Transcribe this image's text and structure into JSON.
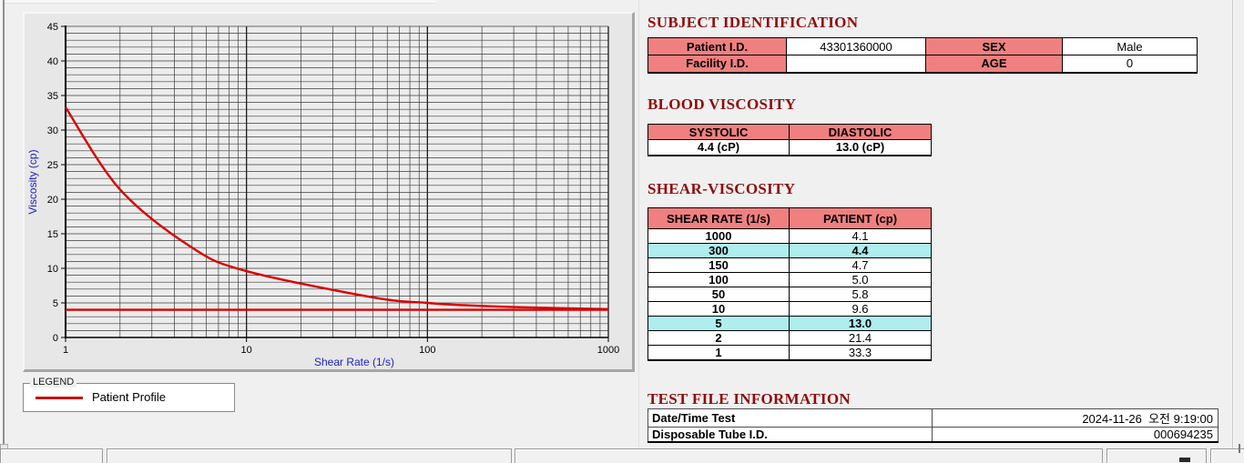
{
  "colors": {
    "header_pink": "#f08080",
    "highlight_cyan": "#afeeee",
    "title_red": "#8e0d0d",
    "axis_label_blue": "#2020c8",
    "series_red": "#d90000"
  },
  "chart_data": {
    "type": "line",
    "xlabel": "Shear Rate (1/s)",
    "ylabel": "Viscosity (cp)",
    "x_scale": "log",
    "xlim": [
      1,
      1000
    ],
    "ylim": [
      0,
      45
    ],
    "x_major_ticks": [
      1,
      10,
      100,
      1000
    ],
    "y_major_ticks": [
      0,
      5,
      10,
      15,
      20,
      25,
      30,
      35,
      40,
      45
    ],
    "y_minor_step": 1,
    "grid": "on",
    "legend_position": "below-left",
    "series": [
      {
        "name": "Patient Profile",
        "color": "#d90000",
        "x": [
          1,
          2,
          5,
          10,
          50,
          100,
          150,
          300,
          1000
        ],
        "y": [
          33.3,
          21.4,
          13.0,
          9.6,
          5.8,
          5.0,
          4.7,
          4.4,
          4.1
        ]
      }
    ],
    "reference_lines": [
      {
        "y": 4.0,
        "color": "#d90000"
      }
    ]
  },
  "legend": {
    "title": "LEGEND",
    "entries": [
      {
        "label": "Patient Profile",
        "color": "#c21010"
      }
    ]
  },
  "subject_identification": {
    "title": "SUBJECT IDENTIFICATION",
    "rows": [
      {
        "label1": "Patient I.D.",
        "value1": "43301360000",
        "label2": "SEX",
        "value2": "Male"
      },
      {
        "label1": "Facility I.D.",
        "value1": "",
        "label2": "AGE",
        "value2": "0"
      }
    ]
  },
  "blood_viscosity": {
    "title": "BLOOD VISCOSITY",
    "headers": [
      "SYSTOLIC",
      "DIASTOLIC"
    ],
    "values": [
      "4.4 (cP)",
      "13.0 (cP)"
    ]
  },
  "shear_viscosity": {
    "title": "SHEAR-VISCOSITY",
    "headers": [
      "SHEAR RATE (1/s)",
      "PATIENT (cp)"
    ],
    "rows": [
      {
        "rate": "1000",
        "value": "4.1",
        "highlight": false
      },
      {
        "rate": "300",
        "value": "4.4",
        "highlight": true
      },
      {
        "rate": "150",
        "value": "4.7",
        "highlight": false
      },
      {
        "rate": "100",
        "value": "5.0",
        "highlight": false
      },
      {
        "rate": "50",
        "value": "5.8",
        "highlight": false
      },
      {
        "rate": "10",
        "value": "9.6",
        "highlight": false
      },
      {
        "rate": "5",
        "value": "13.0",
        "highlight": true
      },
      {
        "rate": "2",
        "value": "21.4",
        "highlight": false
      },
      {
        "rate": "1",
        "value": "33.3",
        "highlight": false
      }
    ]
  },
  "test_file_information": {
    "title": "TEST FILE INFORMATION",
    "rows": [
      {
        "label": "Date/Time Test",
        "value": "2024-11-26  오전 9:19:00"
      },
      {
        "label": "Disposable Tube I.D.",
        "value": "000694235"
      }
    ]
  }
}
